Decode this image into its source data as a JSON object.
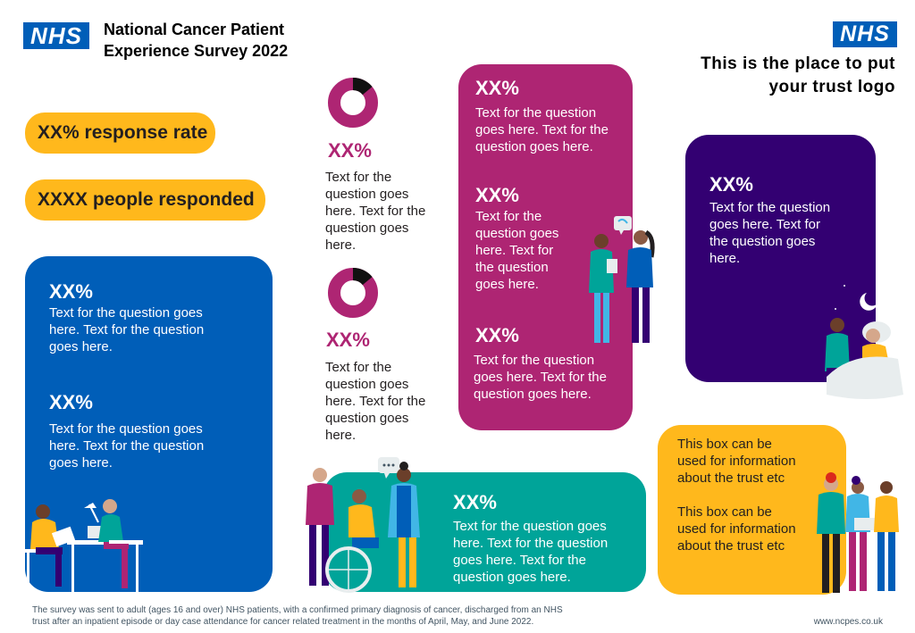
{
  "header": {
    "nhs_left": "NHS",
    "title_line1": "National Cancer Patient",
    "title_line2": "Experience Survey 2022",
    "nhs_right": "NHS",
    "trust_line1": "This is the place to put",
    "trust_line2": "your trust logo"
  },
  "pills": {
    "response_rate": "XX% response rate",
    "responded": "XXXX people responded"
  },
  "blue_card": {
    "stat1": "XX%",
    "text1": [
      "Text for the question goes",
      "here. Text for the question",
      "goes here."
    ],
    "stat2": "XX%",
    "text2": [
      "Text for the question goes",
      "here. Text for the question",
      "goes here."
    ]
  },
  "middle": {
    "donut1_value": 0.14,
    "stat1": "XX%",
    "text1": [
      "Text for the",
      "question goes",
      "here. Text for the",
      "question goes",
      "here."
    ],
    "donut2_value": 0.14,
    "stat2": "XX%",
    "text2": [
      "Text for the",
      "question goes",
      "here. Text for the",
      "question goes",
      "here."
    ]
  },
  "magenta_card": {
    "stat1": "XX%",
    "text1": [
      "Text for the question",
      "goes here. Text for the",
      "question goes here."
    ],
    "stat2": "XX%",
    "text2": [
      "Text for the",
      "question goes",
      "here. Text for",
      "the question",
      "goes here."
    ],
    "stat3": "XX%",
    "text3": [
      "Text for the question",
      "goes here. Text for the",
      "question goes here."
    ]
  },
  "purple_card": {
    "stat": "XX%",
    "text": [
      "Text for the question",
      "goes here. Text for",
      "the question goes",
      "here."
    ]
  },
  "teal_card": {
    "stat": "XX%",
    "text": [
      "Text for the question goes",
      "here. Text for the question",
      "goes here. Text for the",
      "question goes here."
    ]
  },
  "yellow_card": {
    "text1": [
      "This box can be",
      "used for information",
      "about the trust etc"
    ],
    "text2": [
      "This box can be",
      "used for information",
      "about the trust etc"
    ]
  },
  "footer": {
    "note_line1": "The survey was sent to adult (ages 16 and over) NHS patients, with a confirmed primary diagnosis of cancer, discharged from an NHS",
    "note_line2": "trust after an inpatient episode or day case attendance for cancer related treatment in the months of April, May, and June 2022.",
    "url": "www.ncpes.co.uk"
  },
  "colors": {
    "nhs_blue": "#005eb8",
    "card_blue": "#005eb8",
    "magenta": "#ae2573",
    "purple": "#330072",
    "teal": "#00a499",
    "yellow": "#ffb81c"
  }
}
